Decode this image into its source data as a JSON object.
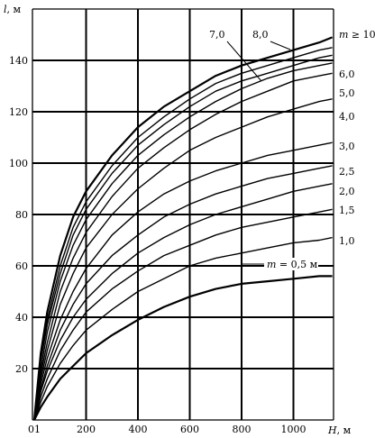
{
  "chart_data": {
    "type": "line",
    "title": "",
    "xlabel": {
      "symbol": "H",
      "unit": ", м"
    },
    "ylabel": {
      "symbol": "l",
      "unit": ", м"
    },
    "xlim": [
      0,
      1150
    ],
    "ylim": [
      0,
      150
    ],
    "grid": true,
    "x_ticks": [
      {
        "value": 0,
        "label": "01"
      },
      {
        "value": 200,
        "label": "200"
      },
      {
        "value": 400,
        "label": "400"
      },
      {
        "value": 600,
        "label": "600"
      },
      {
        "value": 800,
        "label": "800"
      },
      {
        "value": 1000,
        "label": "1000"
      }
    ],
    "y_ticks": [
      {
        "value": 20,
        "label": "20"
      },
      {
        "value": 40,
        "label": "40"
      },
      {
        "value": 60,
        "label": "60"
      },
      {
        "value": 80,
        "label": "80"
      },
      {
        "value": 100,
        "label": "100"
      },
      {
        "value": 120,
        "label": "120"
      },
      {
        "value": 140,
        "label": "140"
      }
    ],
    "x": [
      0,
      25,
      50,
      100,
      150,
      200,
      300,
      400,
      500,
      600,
      700,
      800,
      900,
      1000,
      1100,
      1150
    ],
    "series": [
      {
        "name": "m ≥ 10",
        "values": [
          0,
          26,
          42,
          64,
          79,
          89,
          103,
          114,
          122,
          128,
          134,
          138,
          141,
          144,
          147,
          149
        ]
      },
      {
        "name": "8,0",
        "values": [
          0,
          24,
          39,
          60,
          75,
          85,
          99,
          110,
          118,
          125,
          131,
          135,
          138,
          141,
          144,
          145
        ]
      },
      {
        "name": "7,0",
        "values": [
          0,
          23,
          37,
          57,
          72,
          82,
          96,
          107,
          115,
          122,
          128,
          132,
          135,
          138,
          141,
          142
        ]
      },
      {
        "name": "6,0",
        "values": [
          0,
          20,
          34,
          54,
          68,
          78,
          92,
          103,
          111,
          118,
          124,
          129,
          133,
          136,
          138,
          139
        ]
      },
      {
        "name": "5,0",
        "values": [
          0,
          18,
          30,
          50,
          63,
          73,
          87,
          98,
          106,
          113,
          119,
          124,
          128,
          132,
          134,
          135
        ]
      },
      {
        "name": "4,0",
        "values": [
          0,
          16,
          27,
          45,
          57,
          67,
          80,
          90,
          98,
          105,
          110,
          114,
          118,
          121,
          124,
          125
        ]
      },
      {
        "name": "3,0",
        "values": [
          0,
          14,
          24,
          39,
          50,
          59,
          72,
          81,
          88,
          93,
          97,
          100,
          103,
          105,
          107,
          108
        ]
      },
      {
        "name": "2,5",
        "values": [
          0,
          12,
          21,
          35,
          45,
          53,
          64,
          72,
          79,
          84,
          88,
          91,
          94,
          96,
          98,
          99
        ]
      },
      {
        "name": "2,0",
        "values": [
          0,
          11,
          19,
          31,
          40,
          47,
          57,
          65,
          71,
          76,
          80,
          83,
          86,
          89,
          91,
          92
        ]
      },
      {
        "name": "1,5",
        "values": [
          0,
          9,
          16,
          27,
          35,
          42,
          51,
          58,
          64,
          68,
          72,
          75,
          77,
          79,
          81,
          82
        ]
      },
      {
        "name": "1,0",
        "values": [
          0,
          7,
          13,
          22,
          29,
          35,
          43,
          50,
          55,
          60,
          63,
          65,
          67,
          69,
          70,
          71
        ]
      },
      {
        "name": "m = 0,5 м",
        "values": [
          0,
          5,
          9,
          16,
          21,
          26,
          33,
          39,
          44,
          48,
          51,
          53,
          54,
          55,
          56,
          56
        ]
      }
    ]
  }
}
